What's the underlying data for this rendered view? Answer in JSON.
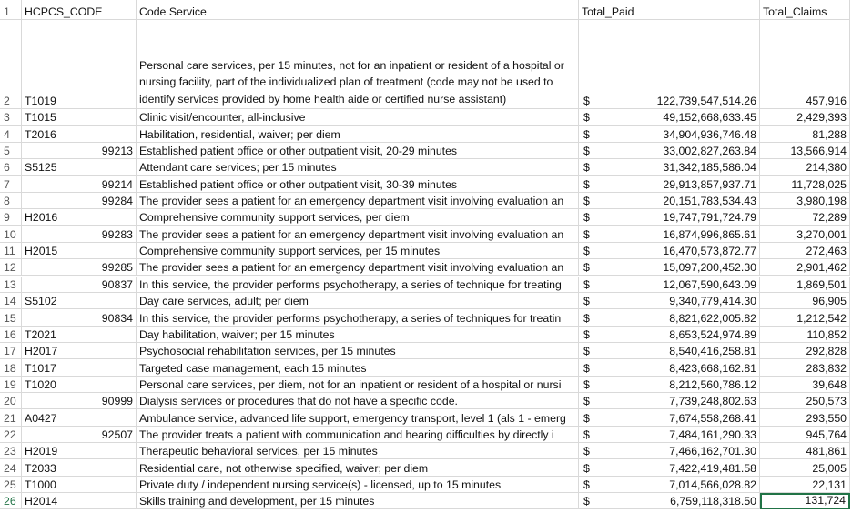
{
  "header": {
    "row_label": "1",
    "cells": [
      "HCPCS_CODE",
      "Code Service",
      "Total_Paid",
      "Total_Claims"
    ]
  },
  "rows": [
    {
      "row_label": "2",
      "code": "T1019",
      "service": "Personal care services, per 15 minutes, not for an inpatient or resident of a hospital or nursing facility, part of the individualized plan of treatment (code may not be used to identify services provided by home health aide or certified nurse assistant)",
      "currency": "$",
      "total_paid": "122,739,547,514.26",
      "total_claims": "457,916"
    },
    {
      "row_label": "3",
      "code": "T1015",
      "service": "Clinic visit/encounter, all-inclusive",
      "currency": "$",
      "total_paid": "49,152,668,633.45",
      "total_claims": "2,429,393"
    },
    {
      "row_label": "4",
      "code": "T2016",
      "service": "Habilitation, residential, waiver; per diem",
      "currency": "$",
      "total_paid": "34,904,936,746.48",
      "total_claims": "81,288"
    },
    {
      "row_label": "5",
      "code": "99213",
      "service": "Established patient office or other outpatient visit, 20-29 minutes",
      "currency": "$",
      "total_paid": "33,002,827,263.84",
      "total_claims": "13,566,914"
    },
    {
      "row_label": "6",
      "code": "S5125",
      "service": "Attendant care services; per 15 minutes",
      "currency": "$",
      "total_paid": "31,342,185,586.04",
      "total_claims": "214,380"
    },
    {
      "row_label": "7",
      "code": "99214",
      "service": "Established patient office or other outpatient visit, 30-39 minutes",
      "currency": "$",
      "total_paid": "29,913,857,937.71",
      "total_claims": "11,728,025"
    },
    {
      "row_label": "8",
      "code": "99284",
      "service": "The provider sees a patient for an emergency department visit involving evaluation an",
      "currency": "$",
      "total_paid": "20,151,783,534.43",
      "total_claims": "3,980,198"
    },
    {
      "row_label": "9",
      "code": "H2016",
      "service": "Comprehensive community support services, per diem",
      "currency": "$",
      "total_paid": "19,747,791,724.79",
      "total_claims": "72,289"
    },
    {
      "row_label": "10",
      "code": "99283",
      "service": "The provider sees a patient for an emergency department visit involving evaluation an",
      "currency": "$",
      "total_paid": "16,874,996,865.61",
      "total_claims": "3,270,001"
    },
    {
      "row_label": "11",
      "code": "H2015",
      "service": "Comprehensive community support services, per 15 minutes",
      "currency": "$",
      "total_paid": "16,470,573,872.77",
      "total_claims": "272,463"
    },
    {
      "row_label": "12",
      "code": "99285",
      "service": "The provider sees a patient for an emergency department visit involving evaluation an",
      "currency": "$",
      "total_paid": "15,097,200,452.30",
      "total_claims": "2,901,462"
    },
    {
      "row_label": "13",
      "code": "90837",
      "service": "In this service, the provider performs psychotherapy, a series of technique for treating",
      "currency": "$",
      "total_paid": "12,067,590,643.09",
      "total_claims": "1,869,501"
    },
    {
      "row_label": "14",
      "code": "S5102",
      "service": "Day care services, adult; per diem",
      "currency": "$",
      "total_paid": "9,340,779,414.30",
      "total_claims": "96,905"
    },
    {
      "row_label": "15",
      "code": "90834",
      "service": "In this service, the provider performs psychotherapy, a series of techniques for treatin",
      "currency": "$",
      "total_paid": "8,821,622,005.82",
      "total_claims": "1,212,542"
    },
    {
      "row_label": "16",
      "code": "T2021",
      "service": "Day habilitation, waiver; per 15 minutes",
      "currency": "$",
      "total_paid": "8,653,524,974.89",
      "total_claims": "110,852"
    },
    {
      "row_label": "17",
      "code": "H2017",
      "service": "Psychosocial rehabilitation services, per 15 minutes",
      "currency": "$",
      "total_paid": "8,540,416,258.81",
      "total_claims": "292,828"
    },
    {
      "row_label": "18",
      "code": "T1017",
      "service": "Targeted case management, each 15 minutes",
      "currency": "$",
      "total_paid": "8,423,668,162.81",
      "total_claims": "283,832"
    },
    {
      "row_label": "19",
      "code": "T1020",
      "service": "Personal care services, per diem, not for an inpatient or resident of a hospital or nursi",
      "currency": "$",
      "total_paid": "8,212,560,786.12",
      "total_claims": "39,648"
    },
    {
      "row_label": "20",
      "code": "90999",
      "service": "Dialysis services or procedures that do not have a specific code.",
      "currency": "$",
      "total_paid": "7,739,248,802.63",
      "total_claims": "250,573"
    },
    {
      "row_label": "21",
      "code": "A0427",
      "service": "Ambulance service, advanced life support, emergency transport, level 1 (als 1 - emerg",
      "currency": "$",
      "total_paid": "7,674,558,268.41",
      "total_claims": "293,550"
    },
    {
      "row_label": "22",
      "code": "92507",
      "service": "The provider treats a patient with communication and hearing difficulties by directly i",
      "currency": "$",
      "total_paid": "7,484,161,290.33",
      "total_claims": "945,764"
    },
    {
      "row_label": "23",
      "code": "H2019",
      "service": "Therapeutic behavioral services, per 15 minutes",
      "currency": "$",
      "total_paid": "7,466,162,701.30",
      "total_claims": "481,861"
    },
    {
      "row_label": "24",
      "code": "T2033",
      "service": "Residential care, not otherwise specified, waiver; per diem",
      "currency": "$",
      "total_paid": "7,422,419,481.58",
      "total_claims": "25,005"
    },
    {
      "row_label": "25",
      "code": "T1000",
      "service": "Private duty / independent nursing service(s) - licensed, up to 15 minutes",
      "currency": "$",
      "total_paid": "7,014,566,028.82",
      "total_claims": "22,131"
    },
    {
      "row_label": "26",
      "code": "H2014",
      "service": "Skills training and development, per 15 minutes",
      "currency": "$",
      "total_paid": "6,759,118,318.50",
      "total_claims": "131,724"
    }
  ]
}
